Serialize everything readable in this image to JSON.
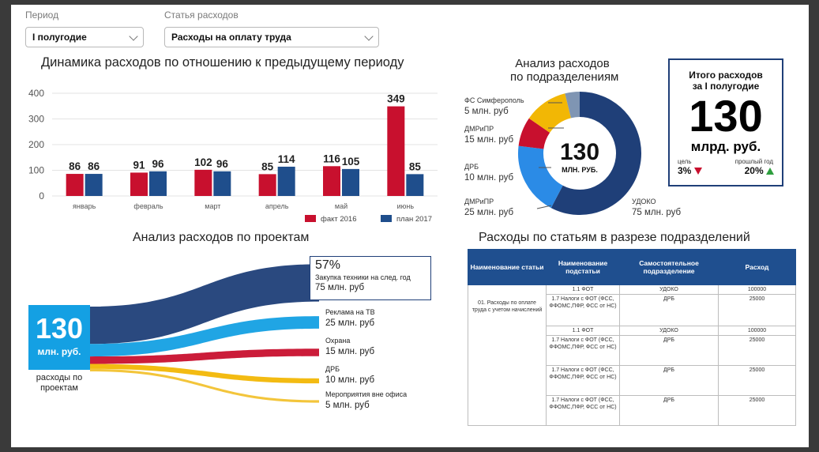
{
  "filters": {
    "period": {
      "label": "Период",
      "value": "I полугодие"
    },
    "expense_item": {
      "label": "Статья расходов",
      "value": "Расходы на оплату труда"
    }
  },
  "dynamics": {
    "title": "Динамика расходов по отношению к предыдущему периоду",
    "chart_data": {
      "type": "bar",
      "categories": [
        "январь",
        "февраль",
        "март",
        "апрель",
        "май",
        "июнь"
      ],
      "series": [
        {
          "name": "факт 2016",
          "values": [
            86,
            91,
            102,
            85,
            116,
            349
          ],
          "color": "#c8102e"
        },
        {
          "name": "план 2017",
          "values": [
            86,
            96,
            96,
            114,
            105,
            85
          ],
          "color": "#1f4e8c"
        }
      ],
      "yticks": [
        0,
        100,
        200,
        300,
        400
      ],
      "ylim": [
        0,
        400
      ],
      "legend": "bottom-right"
    }
  },
  "donut": {
    "title_line1": "Анализ расходов",
    "title_line2": "по подразделениям",
    "center_value": "130",
    "center_unit": "МЛН. РУБ.",
    "chart_data": {
      "type": "pie",
      "slices": [
        {
          "name": "УДОКО",
          "amount": "75 млн. руб",
          "value": 75,
          "color": "#1f3f78"
        },
        {
          "name": "ДМРиПР",
          "amount": "25 млн. руб",
          "value": 25,
          "color": "#2b8be6"
        },
        {
          "name": "ДРБ",
          "amount": "10 млн. руб",
          "value": 10,
          "color": "#c8102e"
        },
        {
          "name": "ДМРиПР",
          "amount": "15 млн. руб",
          "value": 15,
          "color": "#f2b705"
        },
        {
          "name": "ФС Симферополь",
          "amount": "5 млн. руб",
          "value": 5,
          "color": "#7f95b3"
        }
      ]
    }
  },
  "total": {
    "title_line1": "Итого расходов",
    "title_line2": "за I полугодие",
    "value": "130",
    "unit": "млрд. руб.",
    "goal_label": "цель",
    "goal_value": "3%",
    "goal_color": "#c8102e",
    "prev_label": "прошлый год",
    "prev_value": "20%",
    "prev_color": "#2e9e3e"
  },
  "projects": {
    "title": "Анализ расходов по проектам",
    "total_value": "130",
    "total_unit": "млн. руб.",
    "caption_line1": "расходы по",
    "caption_line2": "проектам",
    "items": [
      {
        "percent": "57%",
        "name": "Закупка техники на след. год",
        "amount": "75 млн. руб",
        "value": 75,
        "color": "#1f3f78"
      },
      {
        "name": "Реклама на ТВ",
        "amount": "25 млн. руб",
        "value": 25,
        "color": "#14a0e3"
      },
      {
        "name": "Охрана",
        "amount": "15 млн. руб",
        "value": 15,
        "color": "#c8102e"
      },
      {
        "name": "ДРБ",
        "amount": "10 млн. руб",
        "value": 10,
        "color": "#f2b705"
      },
      {
        "name": "Мероприятия вне офиса",
        "amount": "5 млн. руб",
        "value": 5,
        "color": "#f2c230"
      }
    ]
  },
  "table": {
    "title": "Расходы по статьям в разрезе подразделений",
    "headers": [
      "Наименование статьи",
      "Наименование подстатьи",
      "Самостоятельное подразделение",
      "Расход"
    ],
    "article": "01. Расходы по оплате труда с учетом начислений",
    "rows": [
      {
        "sub": "1.1 ФОТ",
        "dept": "УДОКО",
        "amount": "100000"
      },
      {
        "sub": "1.7 Налоги с ФОТ (ФСС, ФФОМС,ПФР, ФСС от НС)",
        "dept": "ДРБ",
        "amount": "25000"
      },
      {
        "sub": "1.1 ФОТ",
        "dept": "УДОКО",
        "amount": "100000"
      },
      {
        "sub": "1.7 Налоги с ФОТ (ФСС, ФФОМС,ПФР, ФСС от НС)",
        "dept": "ДРБ",
        "amount": "25000"
      },
      {
        "sub": "1.7 Налоги с ФОТ (ФСС, ФФОМС,ПФР, ФСС от НС)",
        "dept": "ДРБ",
        "amount": "25000"
      },
      {
        "sub": "1.7 Налоги с ФОТ (ФСС, ФФОМС,ПФР, ФСС от НС)",
        "dept": "ДРБ",
        "amount": "25000"
      }
    ]
  }
}
